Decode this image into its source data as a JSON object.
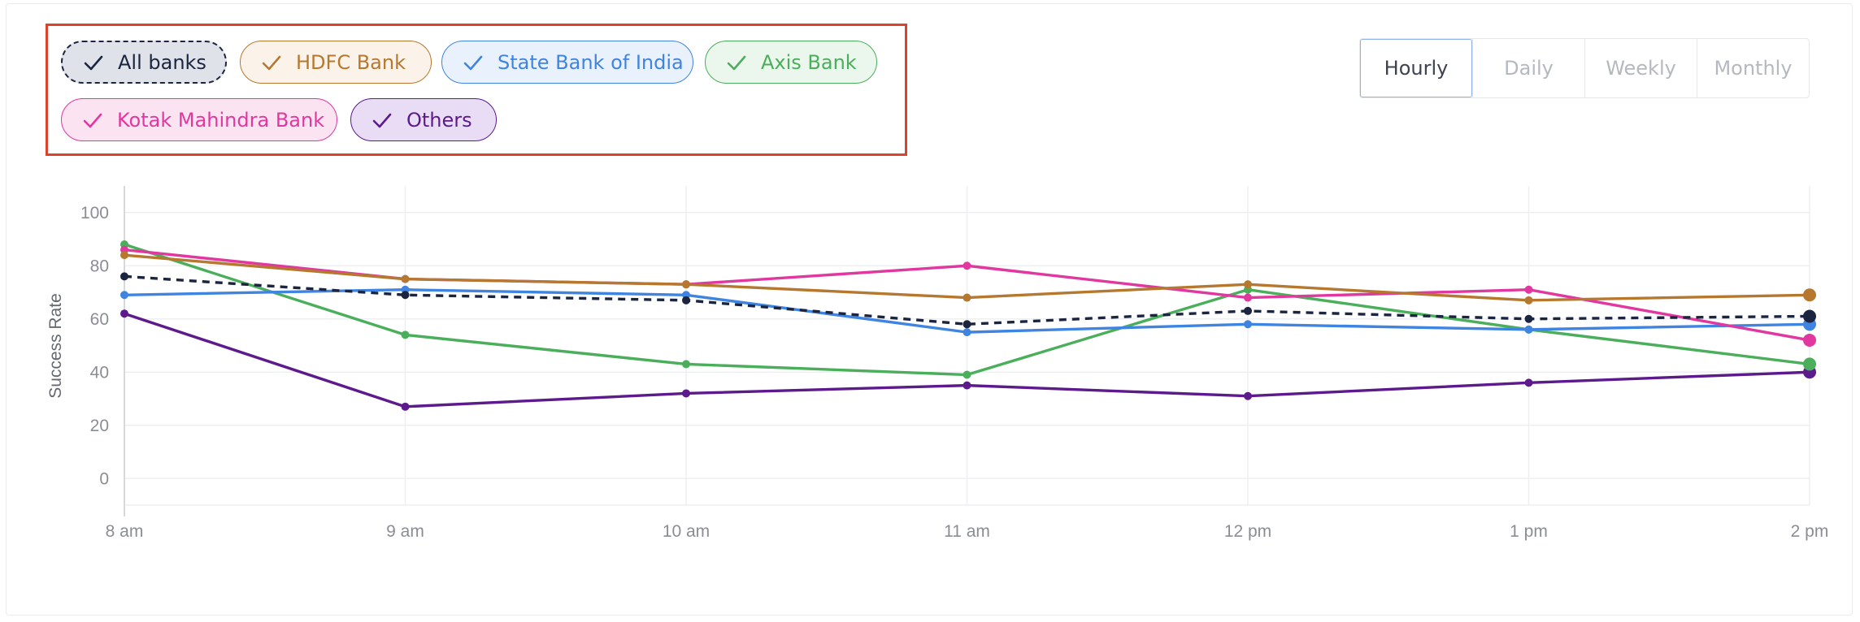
{
  "legend": {
    "chips": [
      {
        "label": "All banks",
        "series": "All banks",
        "color": "#1b2540",
        "bg": "#dfe2e8",
        "dashed": true
      },
      {
        "label": "HDFC Bank",
        "series": "HDFC Bank",
        "color": "#b5782e",
        "bg": "#fbf3ea",
        "dashed": false
      },
      {
        "label": "State Bank of India",
        "series": "State Bank of India",
        "color": "#3f84e0",
        "bg": "#e9f1fc",
        "dashed": false
      },
      {
        "label": "Axis Bank",
        "series": "Axis Bank",
        "color": "#4aae5b",
        "bg": "#ebf6ec",
        "dashed": false
      },
      {
        "label": "Kotak Mahindra Bank",
        "series": "Kotak Mahindra Bank",
        "color": "#e0389f",
        "bg": "#fce3f1",
        "dashed": false
      },
      {
        "label": "Others",
        "series": "Others",
        "color": "#5c1a8c",
        "bg": "#e9ddf6",
        "dashed": false
      }
    ]
  },
  "tabs": [
    {
      "label": "Hourly",
      "active": true
    },
    {
      "label": "Daily",
      "active": false
    },
    {
      "label": "Weekly",
      "active": false
    },
    {
      "label": "Monthly",
      "active": false
    }
  ],
  "chart_data": {
    "type": "line",
    "title": "",
    "xlabel": "",
    "ylabel": "Success Rate",
    "ylim": [
      -10,
      110
    ],
    "yticks": [
      0,
      20,
      40,
      60,
      80,
      100
    ],
    "grid": true,
    "categories": [
      "8 am",
      "9 am",
      "10 am",
      "11 am",
      "12 pm",
      "1 pm",
      "2 pm"
    ],
    "series": [
      {
        "name": "Others",
        "color": "#5c1a8c",
        "dashed": false,
        "values": [
          62,
          27,
          32,
          35,
          31,
          36,
          40
        ]
      },
      {
        "name": "Axis Bank",
        "color": "#4aae5b",
        "dashed": false,
        "values": [
          88,
          54,
          43,
          39,
          71,
          56,
          43
        ]
      },
      {
        "name": "State Bank of India",
        "color": "#3f84e0",
        "dashed": false,
        "values": [
          69,
          71,
          69,
          55,
          58,
          56,
          58
        ]
      },
      {
        "name": "Kotak Mahindra Bank",
        "color": "#e0389f",
        "dashed": false,
        "values": [
          86,
          75,
          73,
          80,
          68,
          71,
          52
        ]
      },
      {
        "name": "HDFC Bank",
        "color": "#b5782e",
        "dashed": false,
        "values": [
          84,
          75,
          73,
          68,
          73,
          67,
          69
        ]
      },
      {
        "name": "All banks",
        "color": "#1b2540",
        "dashed": true,
        "values": [
          76,
          69,
          67,
          58,
          63,
          60,
          61
        ]
      }
    ]
  }
}
